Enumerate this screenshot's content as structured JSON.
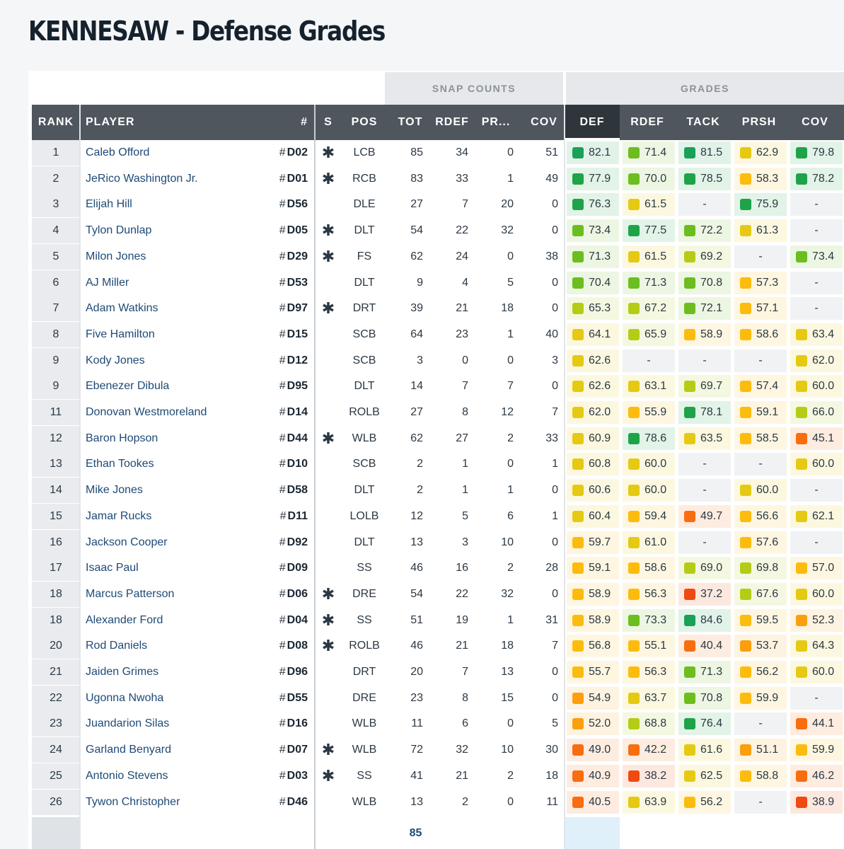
{
  "title": "KENNESAW - Defense Grades",
  "groups": {
    "snap_counts": "SNAP COUNTS",
    "grades": "GRADES"
  },
  "columns": {
    "rank": "RANK",
    "player": "PLAYER",
    "number": "#",
    "starter": "S",
    "pos": "POS",
    "tot": "TOT",
    "rdef": "RDEF",
    "prsh": "PR...",
    "cov": "COV",
    "g_def": "DEF",
    "g_rdef": "RDEF",
    "g_tack": "TACK",
    "g_prsh": "PRSH",
    "g_cov": "COV"
  },
  "sort_column": "DEF",
  "hash": "#",
  "starter_mark": "✱",
  "footer": {
    "tot": "85"
  },
  "grade_colors": {
    "90+": "#138a6e",
    "80": "#1aa157",
    "75": "#1fa348",
    "70": "#6cbd1e",
    "65": "#b5cc16",
    "60": "#e5c913",
    "55": "#fbbc0d",
    "50": "#fb9f0e",
    "40": "#f86d0f",
    "0": "#ee4a12"
  },
  "rows": [
    {
      "rank": "1",
      "player": "Caleb Offord",
      "num": "D02",
      "s": true,
      "pos": "LCB",
      "tot": "85",
      "rdef": "34",
      "prsh": "0",
      "cov": "51",
      "grades": [
        "82.1",
        "71.4",
        "81.5",
        "62.9",
        "79.8"
      ]
    },
    {
      "rank": "2",
      "player": "JeRico Washington Jr.",
      "num": "D01",
      "s": true,
      "pos": "RCB",
      "tot": "83",
      "rdef": "33",
      "prsh": "1",
      "cov": "49",
      "grades": [
        "77.9",
        "70.0",
        "78.5",
        "58.3",
        "78.2"
      ]
    },
    {
      "rank": "3",
      "player": "Elijah Hill",
      "num": "D56",
      "s": false,
      "pos": "DLE",
      "tot": "27",
      "rdef": "7",
      "prsh": "20",
      "cov": "0",
      "grades": [
        "76.3",
        "61.5",
        "-",
        "75.9",
        "-"
      ]
    },
    {
      "rank": "4",
      "player": "Tylon Dunlap",
      "num": "D05",
      "s": true,
      "pos": "DLT",
      "tot": "54",
      "rdef": "22",
      "prsh": "32",
      "cov": "0",
      "grades": [
        "73.4",
        "77.5",
        "72.2",
        "61.3",
        "-"
      ]
    },
    {
      "rank": "5",
      "player": "Milon Jones",
      "num": "D29",
      "s": true,
      "pos": "FS",
      "tot": "62",
      "rdef": "24",
      "prsh": "0",
      "cov": "38",
      "grades": [
        "71.3",
        "61.5",
        "69.2",
        "-",
        "73.4"
      ]
    },
    {
      "rank": "6",
      "player": "AJ Miller",
      "num": "D53",
      "s": false,
      "pos": "DLT",
      "tot": "9",
      "rdef": "4",
      "prsh": "5",
      "cov": "0",
      "grades": [
        "70.4",
        "71.3",
        "70.8",
        "57.3",
        "-"
      ]
    },
    {
      "rank": "7",
      "player": "Adam Watkins",
      "num": "D97",
      "s": true,
      "pos": "DRT",
      "tot": "39",
      "rdef": "21",
      "prsh": "18",
      "cov": "0",
      "grades": [
        "65.3",
        "67.2",
        "72.1",
        "57.1",
        "-"
      ]
    },
    {
      "rank": "8",
      "player": "Five Hamilton",
      "num": "D15",
      "s": false,
      "pos": "SCB",
      "tot": "64",
      "rdef": "23",
      "prsh": "1",
      "cov": "40",
      "grades": [
        "64.1",
        "65.9",
        "58.9",
        "58.6",
        "63.4"
      ]
    },
    {
      "rank": "9",
      "player": "Kody Jones",
      "num": "D12",
      "s": false,
      "pos": "SCB",
      "tot": "3",
      "rdef": "0",
      "prsh": "0",
      "cov": "3",
      "grades": [
        "62.6",
        "-",
        "-",
        "-",
        "62.0"
      ]
    },
    {
      "rank": "9",
      "player": "Ebenezer Dibula",
      "num": "D95",
      "s": false,
      "pos": "DLT",
      "tot": "14",
      "rdef": "7",
      "prsh": "7",
      "cov": "0",
      "grades": [
        "62.6",
        "63.1",
        "69.7",
        "57.4",
        "60.0"
      ]
    },
    {
      "rank": "11",
      "player": "Donovan Westmoreland",
      "num": "D14",
      "s": false,
      "pos": "ROLB",
      "tot": "27",
      "rdef": "8",
      "prsh": "12",
      "cov": "7",
      "grades": [
        "62.0",
        "55.9",
        "78.1",
        "59.1",
        "66.0"
      ]
    },
    {
      "rank": "12",
      "player": "Baron Hopson",
      "num": "D44",
      "s": true,
      "pos": "WLB",
      "tot": "62",
      "rdef": "27",
      "prsh": "2",
      "cov": "33",
      "grades": [
        "60.9",
        "78.6",
        "63.5",
        "58.5",
        "45.1"
      ]
    },
    {
      "rank": "13",
      "player": "Ethan Tookes",
      "num": "D10",
      "s": false,
      "pos": "SCB",
      "tot": "2",
      "rdef": "1",
      "prsh": "0",
      "cov": "1",
      "grades": [
        "60.8",
        "60.0",
        "-",
        "-",
        "60.0"
      ]
    },
    {
      "rank": "14",
      "player": "Mike Jones",
      "num": "D58",
      "s": false,
      "pos": "DLT",
      "tot": "2",
      "rdef": "1",
      "prsh": "1",
      "cov": "0",
      "grades": [
        "60.6",
        "60.0",
        "-",
        "60.0",
        "-"
      ]
    },
    {
      "rank": "15",
      "player": "Jamar Rucks",
      "num": "D11",
      "s": false,
      "pos": "LOLB",
      "tot": "12",
      "rdef": "5",
      "prsh": "6",
      "cov": "1",
      "grades": [
        "60.4",
        "59.4",
        "49.7",
        "56.6",
        "62.1"
      ]
    },
    {
      "rank": "16",
      "player": "Jackson Cooper",
      "num": "D92",
      "s": false,
      "pos": "DLT",
      "tot": "13",
      "rdef": "3",
      "prsh": "10",
      "cov": "0",
      "grades": [
        "59.7",
        "61.0",
        "-",
        "57.6",
        "-"
      ]
    },
    {
      "rank": "17",
      "player": "Isaac Paul",
      "num": "D09",
      "s": false,
      "pos": "SS",
      "tot": "46",
      "rdef": "16",
      "prsh": "2",
      "cov": "28",
      "grades": [
        "59.1",
        "58.6",
        "69.0",
        "69.8",
        "57.0"
      ]
    },
    {
      "rank": "18",
      "player": "Marcus Patterson",
      "num": "D06",
      "s": true,
      "pos": "DRE",
      "tot": "54",
      "rdef": "22",
      "prsh": "32",
      "cov": "0",
      "grades": [
        "58.9",
        "56.3",
        "37.2",
        "67.6",
        "60.0"
      ]
    },
    {
      "rank": "18",
      "player": "Alexander Ford",
      "num": "D04",
      "s": true,
      "pos": "SS",
      "tot": "51",
      "rdef": "19",
      "prsh": "1",
      "cov": "31",
      "grades": [
        "58.9",
        "73.3",
        "84.6",
        "59.5",
        "52.3"
      ]
    },
    {
      "rank": "20",
      "player": "Rod Daniels",
      "num": "D08",
      "s": true,
      "pos": "ROLB",
      "tot": "46",
      "rdef": "21",
      "prsh": "18",
      "cov": "7",
      "grades": [
        "56.8",
        "55.1",
        "40.4",
        "53.7",
        "64.3"
      ]
    },
    {
      "rank": "21",
      "player": "Jaiden Grimes",
      "num": "D96",
      "s": false,
      "pos": "DRT",
      "tot": "20",
      "rdef": "7",
      "prsh": "13",
      "cov": "0",
      "grades": [
        "55.7",
        "56.3",
        "71.3",
        "56.2",
        "60.0"
      ]
    },
    {
      "rank": "22",
      "player": "Ugonna Nwoha",
      "num": "D55",
      "s": false,
      "pos": "DRE",
      "tot": "23",
      "rdef": "8",
      "prsh": "15",
      "cov": "0",
      "grades": [
        "54.9",
        "63.7",
        "70.8",
        "59.9",
        "-"
      ]
    },
    {
      "rank": "23",
      "player": "Juandarion Silas",
      "num": "D16",
      "s": false,
      "pos": "WLB",
      "tot": "11",
      "rdef": "6",
      "prsh": "0",
      "cov": "5",
      "grades": [
        "52.0",
        "68.8",
        "76.4",
        "-",
        "44.1"
      ]
    },
    {
      "rank": "24",
      "player": "Garland Benyard",
      "num": "D07",
      "s": true,
      "pos": "WLB",
      "tot": "72",
      "rdef": "32",
      "prsh": "10",
      "cov": "30",
      "grades": [
        "49.0",
        "42.2",
        "61.6",
        "51.1",
        "59.9"
      ]
    },
    {
      "rank": "25",
      "player": "Antonio Stevens",
      "num": "D03",
      "s": true,
      "pos": "SS",
      "tot": "41",
      "rdef": "21",
      "prsh": "2",
      "cov": "18",
      "grades": [
        "40.9",
        "38.2",
        "62.5",
        "58.8",
        "46.2"
      ]
    },
    {
      "rank": "26",
      "player": "Tywon Christopher",
      "num": "D46",
      "s": false,
      "pos": "WLB",
      "tot": "13",
      "rdef": "2",
      "prsh": "0",
      "cov": "11",
      "grades": [
        "40.5",
        "63.9",
        "56.2",
        "-",
        "38.9"
      ]
    }
  ]
}
